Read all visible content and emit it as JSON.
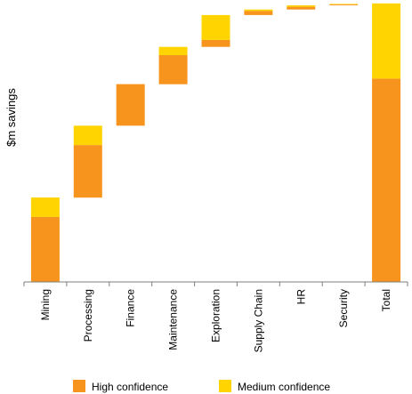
{
  "chart_data": {
    "type": "bar",
    "subtype": "waterfall",
    "title": "",
    "xlabel": "",
    "ylabel": "$m savings",
    "ylim": [
      0,
      1000
    ],
    "grid": false,
    "legend_position": "bottom",
    "categories": [
      "Mining",
      "Processing",
      "Finance",
      "Maintenance",
      "Exploration",
      "Supply Chain",
      "HR",
      "Security",
      "Total"
    ],
    "series": [
      {
        "name": "High confidence",
        "color": "#f7941d",
        "values": [
          235,
          190,
          150,
          105,
          25,
          15,
          10,
          3,
          735
        ]
      },
      {
        "name": "Medium confidence",
        "color": "#ffd400",
        "values": [
          70,
          70,
          0,
          30,
          90,
          5,
          5,
          2,
          272
        ]
      }
    ],
    "bases": [
      0,
      305,
      565,
      715,
      850,
      965,
      985,
      1000,
      0
    ]
  },
  "legend": {
    "high_label": "High confidence",
    "medium_label": "Medium confidence"
  }
}
